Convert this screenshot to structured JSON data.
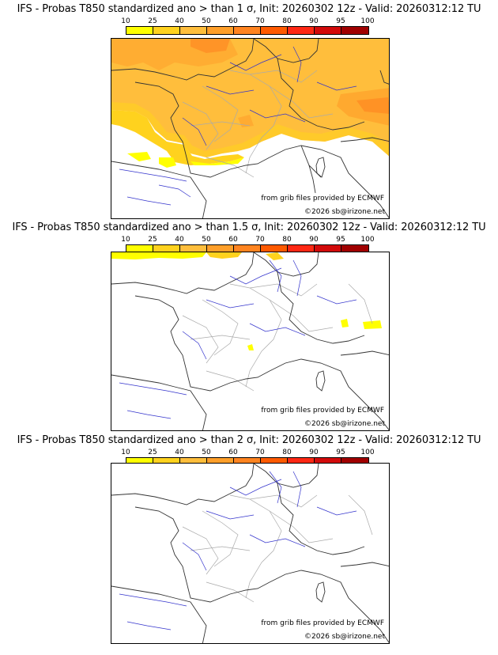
{
  "legend": {
    "levels": [
      "10",
      "25",
      "40",
      "50",
      "60",
      "70",
      "80",
      "90",
      "95",
      "100"
    ],
    "colors": [
      "#ffff00",
      "#ffd21e",
      "#ffbe3c",
      "#ff9f2a",
      "#ff8420",
      "#ff5a00",
      "#ff2814",
      "#d20a0a",
      "#a00000",
      "#640000"
    ]
  },
  "panels": [
    {
      "title": "IFS - Probas T850  standardized ano > than 1 σ, Init: 20260302 12z - Valid: 20260312:12 TU",
      "credit_source": "from grib files provided by ECMWF",
      "credit_copyright": "©2026 sb@irizone.net"
    },
    {
      "title": "IFS - Probas T850  standardized ano > than 1.5 σ, Init: 20260302 12z - Valid: 20260312:12 TU",
      "credit_source": "from grib files provided by ECMWF",
      "credit_copyright": "©2026 sb@irizone.net"
    },
    {
      "title": "IFS - Probas T850  standardized ano > than 2 σ, Init: 20260302 12z - Valid: 20260312:12 TU",
      "credit_source": "from grib files provided by ECMWF",
      "credit_copyright": "©2026 sb@irizone.net"
    }
  ]
}
